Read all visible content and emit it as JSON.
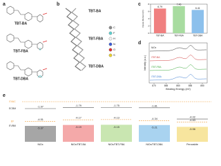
{
  "panels": {
    "a": {
      "label": "a",
      "molecules": [
        "TBT-BA",
        "TBT-FBA",
        "TBT-DBA"
      ]
    },
    "b": {
      "label": "b",
      "molecules": [
        "TBT-BA",
        "TBT-FBA",
        "TBT-DBA"
      ],
      "elements": [
        {
          "symbol": "C",
          "color": "#8c8c8c"
        },
        {
          "symbol": "F",
          "color": "#5fd0d0"
        },
        {
          "symbol": "H",
          "color": "#f2f2f2"
        },
        {
          "symbol": "N",
          "color": "#3c5cd6"
        },
        {
          "symbol": "O",
          "color": "#e03030"
        },
        {
          "symbol": "S",
          "color": "#e8d030"
        }
      ]
    },
    "d": {
      "label": "d",
      "y_label": "Intensity (a.u.)",
      "x_label": "Binding Energy (eV)",
      "samples": [
        "NiOx",
        "/TBT-BA",
        "/TBT-FBA",
        "/TBT-DBA"
      ],
      "sample_colors": [
        "#333333",
        "#d03a3a",
        "#3aa83a",
        "#3a7ad0"
      ],
      "xlim": [
        872,
        848
      ],
      "xticks": [
        870,
        865,
        860,
        855,
        850
      ]
    },
    "e": {
      "label": "e",
      "levels": [
        "EVAC",
        "ECBM",
        "EF",
        "EVBM"
      ],
      "columns": [
        {
          "name": "NiOx",
          "cbm": -1.97,
          "ef": -4.51,
          "vbm": -5.37,
          "color": "#a6a6a6"
        },
        {
          "name": "NiOx/TBT-BA",
          "cbm": -1.79,
          "ef": -4.17,
          "vbm": -5.19,
          "color": "#f4a9a9"
        },
        {
          "name": "NiOx/TBT-FBA",
          "cbm": -1.75,
          "ef": -4.13,
          "vbm": -5.15,
          "color": "#c9e6b1"
        },
        {
          "name": "NiOx/TBT-DBA",
          "cbm": -1.81,
          "ef": -4.34,
          "vbm": -5.21,
          "color": "#a9d3f0"
        },
        {
          "name": "Perovskite",
          "cbm": -4.02,
          "ef": -4.63,
          "vbm": -5.56,
          "color": "#f7e59e"
        }
      ]
    }
  },
  "chart_data": {
    "type": "bar",
    "panel_label": "c",
    "y_label": "Dipole Moment (D)",
    "categories": [
      "TBT-BA",
      "TBT-FBA",
      "TBT-DBA"
    ],
    "values": [
      6.79,
      7.46,
      6.41
    ],
    "colors": [
      "#f08080",
      "#a8dca0",
      "#8cc0ec"
    ],
    "ylim": [
      0,
      8
    ],
    "yticks": [
      0,
      2,
      4,
      6,
      8
    ]
  }
}
